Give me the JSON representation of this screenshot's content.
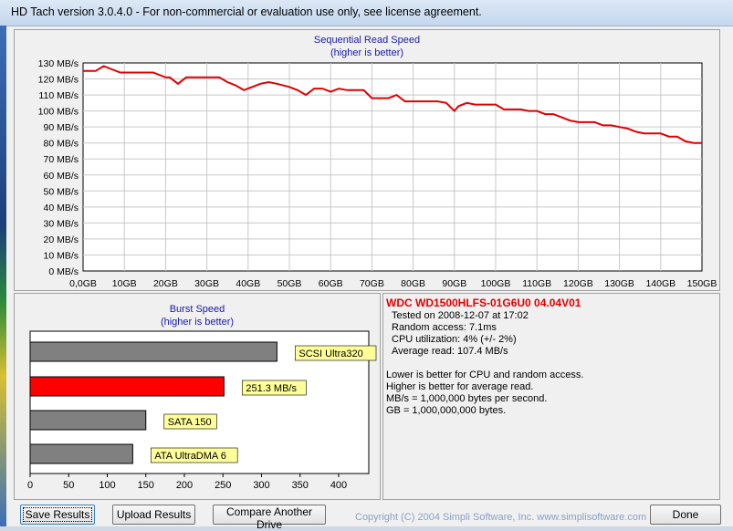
{
  "window": {
    "title": "HD Tach version 3.0.4.0  - For non-commercial or evaluation use only, see license agreement."
  },
  "sequential": {
    "title": "Sequential Read Speed",
    "subtitle": "(higher is better)",
    "line_color": "#e00000"
  },
  "burst": {
    "title": "Burst Speed",
    "subtitle": "(higher is better)"
  },
  "chart_data": [
    {
      "type": "line",
      "title": "Sequential Read Speed",
      "subtitle": "(higher is better)",
      "x_tick_labels": [
        "0,0GB",
        "10GB",
        "20GB",
        "30GB",
        "40GB",
        "50GB",
        "60GB",
        "70GB",
        "80GB",
        "90GB",
        "100GB",
        "110GB",
        "120GB",
        "130GB",
        "140GB",
        "150GB"
      ],
      "y_tick_labels": [
        "0 MB/s",
        "10 MB/s",
        "20 MB/s",
        "30 MB/s",
        "40 MB/s",
        "50 MB/s",
        "60 MB/s",
        "70 MB/s",
        "80 MB/s",
        "90 MB/s",
        "100 MB/s",
        "110 MB/s",
        "120 MB/s",
        "130 MB/s"
      ],
      "xlim": [
        0,
        150
      ],
      "ylim": [
        0,
        130
      ],
      "grid": true,
      "series": [
        {
          "x": [
            0,
            3,
            5,
            7,
            9,
            12,
            15,
            17,
            20,
            21,
            23,
            25,
            27,
            30,
            33,
            35,
            37,
            39,
            41,
            43,
            45,
            47,
            50,
            52,
            54,
            56,
            58,
            60,
            62,
            64,
            66,
            68,
            70,
            72,
            74,
            76,
            78,
            80,
            82,
            84,
            86,
            88,
            90,
            91,
            93,
            95,
            97,
            100,
            102,
            104,
            106,
            108,
            110,
            112,
            114,
            116,
            118,
            120,
            122,
            124,
            126,
            128,
            130,
            132,
            134,
            136,
            138,
            140,
            142,
            144,
            146,
            148,
            150
          ],
          "y": [
            125,
            125,
            128,
            126,
            124,
            124,
            124,
            124,
            121,
            121,
            117,
            121,
            121,
            121,
            121,
            118,
            116,
            113,
            115,
            117,
            118,
            117,
            115,
            113,
            110,
            114,
            114,
            112,
            114,
            113,
            113,
            113,
            108,
            108,
            108,
            110,
            106,
            106,
            106,
            106,
            106,
            105,
            100,
            103,
            105,
            104,
            104,
            104,
            101,
            101,
            101,
            100,
            100,
            98,
            98,
            96,
            94,
            93,
            93,
            93,
            91,
            91,
            90,
            89,
            87,
            86,
            86,
            86,
            84,
            84,
            81,
            80,
            80
          ]
        }
      ]
    },
    {
      "type": "bar",
      "orientation": "horizontal",
      "title": "Burst Speed",
      "subtitle": "(higher is better)",
      "xlim": [
        0,
        450
      ],
      "x_tick_labels": [
        "0",
        "50",
        "100",
        "150",
        "200",
        "250",
        "300",
        "350",
        "400"
      ],
      "categories": [
        "SCSI Ultra320",
        "251.3 MB/s",
        "SATA 150",
        "ATA UltraDMA 6"
      ],
      "values": [
        320,
        251.3,
        150,
        133
      ],
      "colors": [
        "#808080",
        "#ff0000",
        "#808080",
        "#808080"
      ]
    }
  ],
  "drive_info": {
    "name": "WDC WD1500HLFS-01G6U0 04.04V01",
    "tested_on": "Tested on 2008-12-07 at 17:02",
    "random_access": "Random access: 7.1ms",
    "cpu": "CPU utilization: 4% (+/- 2%)",
    "average_read": "Average read: 107.4 MB/s",
    "notes": [
      "Lower is better for CPU and random access.",
      "Higher is better for average read.",
      "MB/s = 1,000,000 bytes per second.",
      "GB = 1,000,000,000 bytes."
    ]
  },
  "buttons": {
    "save": "Save Results",
    "upload": "Upload Results",
    "compare": "Compare Another Drive",
    "done": "Done"
  },
  "copyright": "Copyright (C) 2004 Simpli Software, Inc. www.simplisoftware.com"
}
